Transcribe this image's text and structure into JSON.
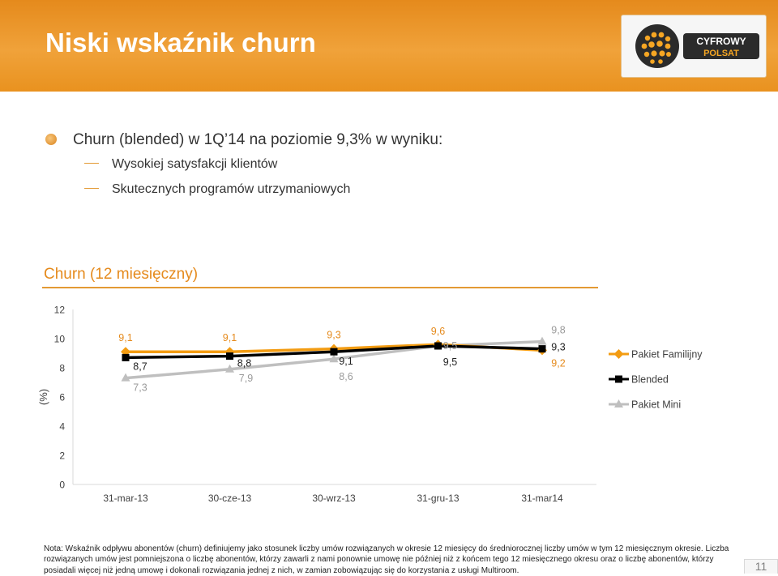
{
  "slide": {
    "title": "Niski wskaźnik churn",
    "logo_text": [
      "CYFROWY",
      "POLSAT"
    ],
    "bullet_main": "Churn (blended) w 1Q’14 na poziomie 9,3% w wyniku:",
    "sub_bullets": [
      "Wysokiej satysfakcji klientów",
      "Skutecznych programów utrzymaniowych"
    ],
    "chart_heading": "Churn (12 miesięczny)",
    "note": "Nota: Wskaźnik odpływu abonentów (churn) definiujemy jako stosunek liczby umów rozwiązanych w okresie 12 miesięcy do średniorocznej liczby umów w tym 12 miesięcznym okresie. Liczba rozwiązanych umów jest pomniejszona o liczbę abonentów, którzy zawarli z nami ponownie umowę nie później niż z końcem tego 12 miesięcznego okresu oraz o liczbę abonentów, którzy posiadali więcej niż jedną umowę i dokonali rozwiązania jednej z nich, w zamian zobowiązując się do korzystania z usługi Multiroom.",
    "page_number": "11",
    "colors": {
      "accent": "#e58a1c",
      "familijny": "#f39c12",
      "blended": "#000000",
      "mini": "#bfbfbf"
    }
  },
  "chart_data": {
    "type": "line",
    "categories": [
      "31-mar-13",
      "30-cze-13",
      "30-wrz-13",
      "31-gru-13",
      "31-mar14"
    ],
    "ylabel": "(%)",
    "ylim": [
      0,
      12
    ],
    "yticks": [
      "0",
      "2",
      "4",
      "6",
      "8",
      "10",
      "12"
    ],
    "legend_position": "right",
    "series": [
      {
        "name": "Pakiet Familijny",
        "values": [
          9.1,
          9.1,
          9.3,
          9.6,
          9.2
        ],
        "labels": [
          "9,1",
          "9,1",
          "9,3",
          "9,6",
          "9,2"
        ],
        "color": "#f39c12",
        "marker": "diamond"
      },
      {
        "name": "Blended",
        "values": [
          8.7,
          8.8,
          9.1,
          9.5,
          9.3
        ],
        "labels": [
          "8,7",
          "8,8",
          "9,1",
          "9,5",
          "9,3"
        ],
        "color": "#000000",
        "marker": "square"
      },
      {
        "name": "Pakiet Mini",
        "values": [
          7.3,
          7.9,
          8.6,
          9.5,
          9.8
        ],
        "labels": [
          "7,3",
          "7,9",
          "8,6",
          "9,5",
          "9,8"
        ],
        "color": "#bfbfbf",
        "marker": "triangle"
      }
    ]
  }
}
